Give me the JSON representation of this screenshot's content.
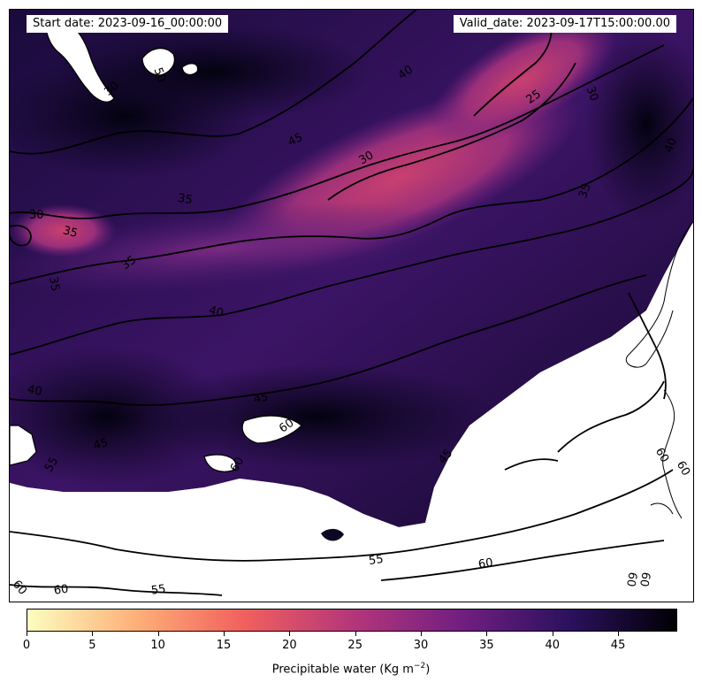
{
  "header": {
    "start_date": "Start date: 2023-09-16_00:00:00",
    "valid_date": "Valid_date: 2023-09-17T15:00:00.00"
  },
  "colorbar": {
    "title_prefix": "Precipitable water (Kg m",
    "title_exponent": "−2",
    "title_suffix": ")",
    "min": 0,
    "max": 49.5,
    "ticks": [
      0,
      5,
      10,
      15,
      20,
      25,
      30,
      35,
      40,
      45
    ],
    "colormap": "magma_r",
    "stops": [
      "#fcfdbf",
      "#feb078",
      "#f1605d",
      "#b5367a",
      "#721f81",
      "#2c115f",
      "#000004"
    ]
  },
  "contour_labels": [
    "50",
    "30",
    "40",
    "45",
    "30",
    "25",
    "30",
    "40",
    "30",
    "35",
    "35",
    "35",
    "35",
    "35",
    "40",
    "40",
    "45",
    "45",
    "45",
    "60",
    "60",
    "55",
    "55",
    "60",
    "60",
    "60",
    "60",
    "60",
    "55",
    "60",
    "60"
  ]
}
